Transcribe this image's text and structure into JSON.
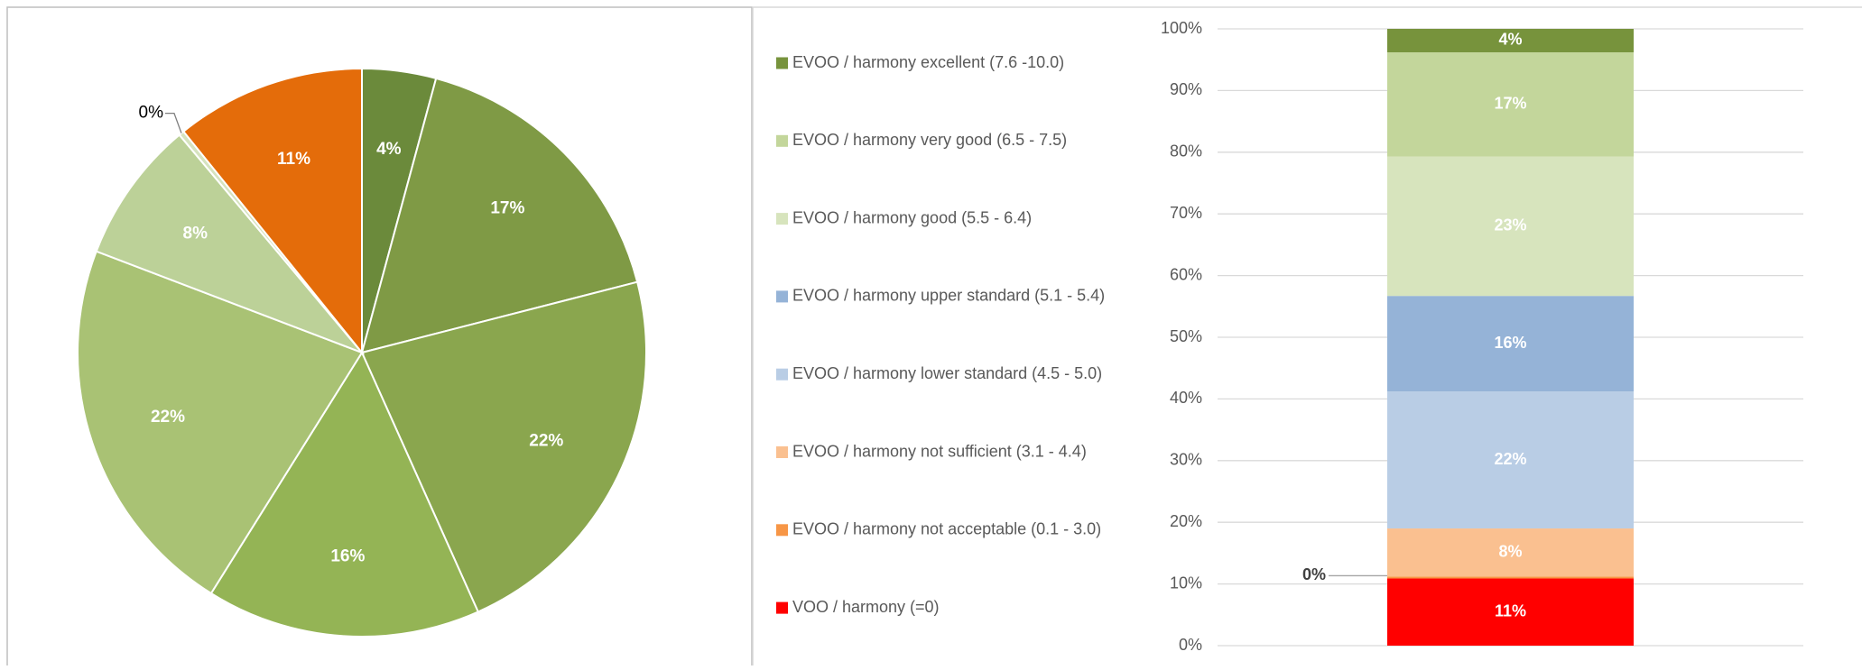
{
  "chart_data": [
    {
      "type": "pie",
      "values": [
        4.2,
        16.8,
        22.3,
        15.6,
        21.9,
        8.1,
        0.3,
        10.8
      ],
      "value_labels": [
        "4%",
        "17%",
        "22%",
        "16%",
        "22%",
        "8%",
        "0%",
        "11%"
      ],
      "colors": [
        "#6b8a3b",
        "#7f9a45",
        "#8aa64e",
        "#94b455",
        "#a9c274",
        "#bcd198",
        "#d6e3bf",
        "#e46c0a"
      ]
    },
    {
      "type": "bar",
      "stacked": true,
      "legend": "left",
      "grid": true,
      "categories": [
        null
      ],
      "ylim": [
        0,
        100
      ],
      "yticks": [
        {
          "value": 0,
          "label": "0%"
        },
        {
          "value": 10,
          "label": "10%"
        },
        {
          "value": 20,
          "label": "20%"
        },
        {
          "value": 30,
          "label": "30%"
        },
        {
          "value": 40,
          "label": "40%"
        },
        {
          "value": 50,
          "label": "50%"
        },
        {
          "value": 60,
          "label": "60%"
        },
        {
          "value": 70,
          "label": "70%"
        },
        {
          "value": 80,
          "label": "80%"
        },
        {
          "value": 90,
          "label": "90%"
        },
        {
          "value": 100,
          "label": "100%"
        }
      ],
      "series": [
        {
          "name": "EVOO / harmony excellent (7.6 -10.0)",
          "color": "#77933c",
          "values": [
            3.8
          ],
          "value_labels": [
            "4%"
          ]
        },
        {
          "name": "EVOO / harmony very good (6.5 - 7.5)",
          "color": "#c3d69b",
          "values": [
            16.9
          ],
          "value_labels": [
            "17%"
          ]
        },
        {
          "name": "EVOO / harmony good (5.5 - 6.4)",
          "color": "#d7e4bd",
          "values": [
            22.6
          ],
          "value_labels": [
            "23%"
          ]
        },
        {
          "name": "EVOO / harmony upper standard (5.1 - 5.4)",
          "color": "#95b3d7",
          "values": [
            15.5
          ],
          "value_labels": [
            "16%"
          ]
        },
        {
          "name": "EVOO / harmony lower standard (4.5 - 5.0)",
          "color": "#b9cde5",
          "values": [
            22.2
          ],
          "value_labels": [
            "22%"
          ]
        },
        {
          "name": "EVOO / harmony not sufficient (3.1 - 4.4)",
          "color": "#fac090",
          "values": [
            7.8
          ],
          "value_labels": [
            "8%"
          ]
        },
        {
          "name": "EVOO / harmony not acceptable (0.1 - 3.0)",
          "color": "#f79646",
          "values": [
            0.3
          ],
          "value_labels": [
            "0%"
          ]
        },
        {
          "name": "VOO / harmony (=0)",
          "color": "#ff0000",
          "values": [
            10.9
          ],
          "value_labels": [
            "11%"
          ]
        }
      ]
    }
  ]
}
